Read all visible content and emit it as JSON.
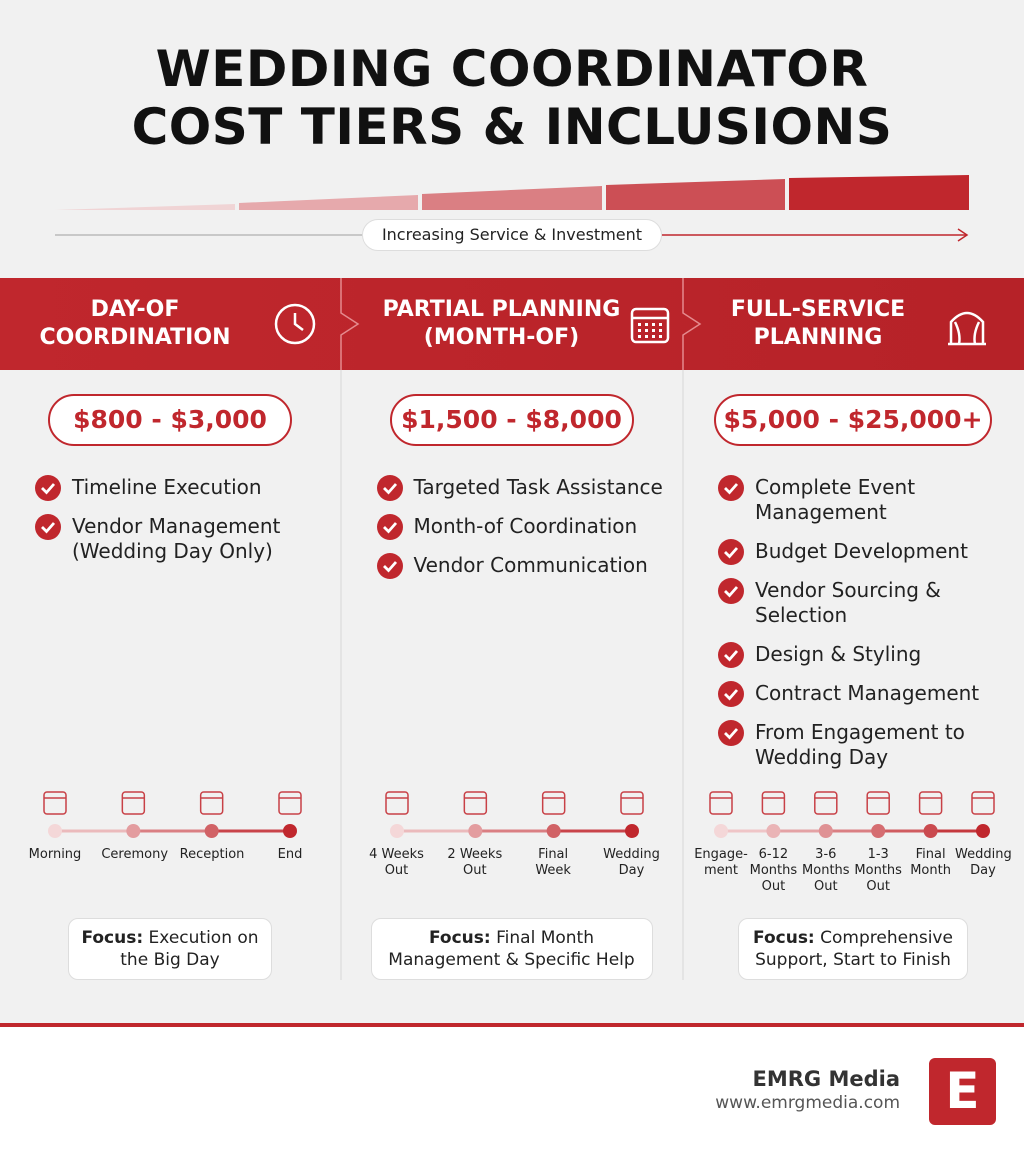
{
  "header": {
    "title_lines": [
      "WEDDING COORDINATOR",
      "COST TIERS & INCLUSIONS"
    ],
    "scale_label": "Increasing Service & Investment"
  },
  "tiers": [
    {
      "title": "DAY-OF\nCOORDINATION",
      "icon": "clock",
      "price": "$800 - $3,000",
      "inclusions": [
        "Timeline Execution",
        "Vendor Management (Wedding Day Only)"
      ],
      "timeline": [
        "Morning",
        "Ceremony",
        "Reception",
        "End"
      ],
      "focus_label": "Focus:",
      "focus": "Execution on the Big Day"
    },
    {
      "title": "PARTIAL PLANNING\n(MONTH-OF)",
      "icon": "calendar",
      "price": "$1,500 - $8,000",
      "inclusions": [
        "Targeted Task Assistance",
        "Month-of Coordination",
        "Vendor Communication"
      ],
      "timeline": [
        "4 Weeks Out",
        "2 Weeks Out",
        "Final Week",
        "Wedding Day"
      ],
      "focus_label": "Focus:",
      "focus": "Final Month Management & Specific Help"
    },
    {
      "title": "FULL-SERVICE\nPLANNING",
      "icon": "arch",
      "price": "$5,000 - $25,000+",
      "inclusions": [
        "Complete Event Management",
        "Budget Development",
        "Vendor Sourcing & Selection",
        "Design & Styling",
        "Contract Management",
        "From Engagement to Wedding Day"
      ],
      "timeline": [
        "Engage-ment",
        "6-12 Months Out",
        "3-6 Months Out",
        "1-3 Months Out",
        "Final Month",
        "Wedding Day"
      ],
      "focus_label": "Focus:",
      "focus": "Comprehensive Support, Start to Finish"
    }
  ],
  "footer": {
    "brand": "EMRG Media",
    "url": "www.emrgmedia.com",
    "logo": "E"
  }
}
